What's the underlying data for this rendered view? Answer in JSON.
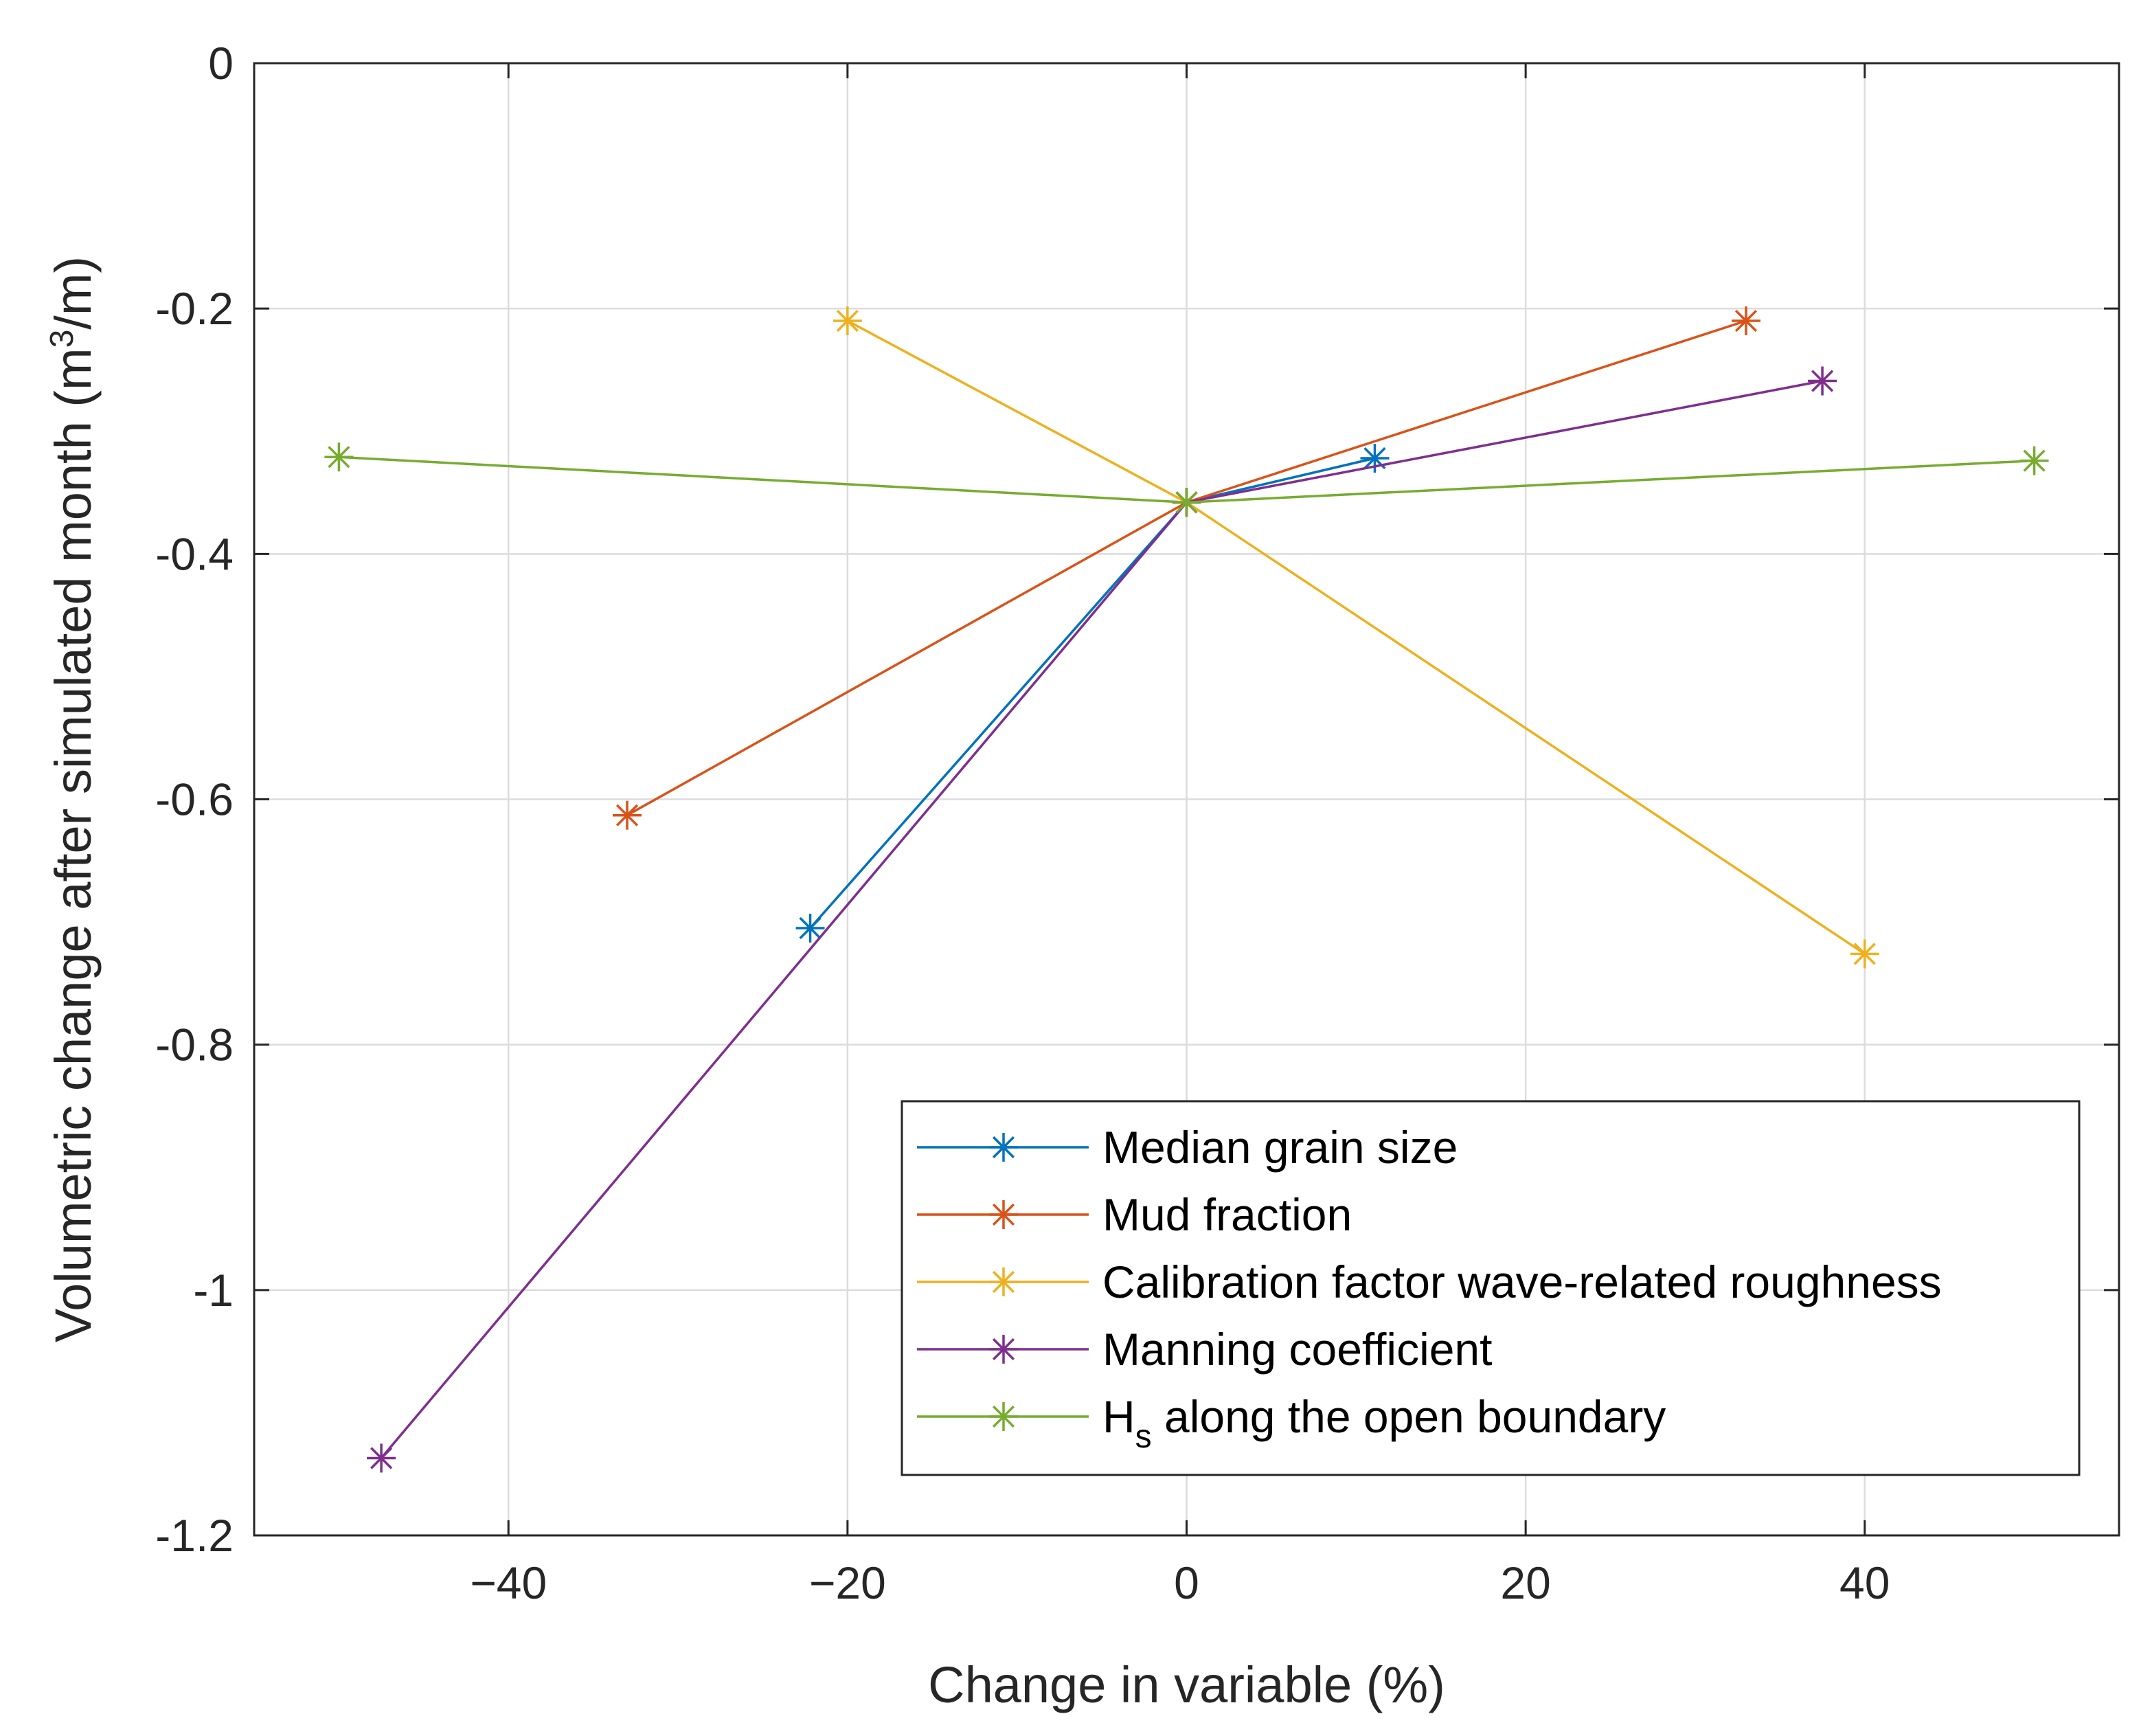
{
  "chart_data": {
    "type": "line",
    "title": "",
    "xlabel": "Change in variable (%)",
    "ylabel": {
      "prefix": "Volumetric change after simulated month (m",
      "superscript": "3",
      "suffix": "/m)"
    },
    "xlim": [
      -55,
      55
    ],
    "ylim": [
      -1.2,
      0
    ],
    "xticks": [
      -40,
      -20,
      0,
      20,
      40
    ],
    "xtick_labels": [
      "−40",
      "−20",
      "0",
      "20",
      "40"
    ],
    "yticks": [
      0,
      -0.2,
      -0.4,
      -0.6,
      -0.8,
      -1,
      -1.2
    ],
    "ytick_labels": [
      "0",
      "-0.2",
      "-0.4",
      "-0.6",
      "-0.8",
      "-1",
      "-1.2"
    ],
    "grid": true,
    "legend_position": "bottom-right",
    "marker": "asterisk",
    "series": [
      {
        "name": "Median grain size",
        "color": "#0072BD",
        "x": [
          -22.2,
          0,
          11.1
        ],
        "y": [
          -0.705,
          -0.358,
          -0.322
        ]
      },
      {
        "name": "Mud fraction",
        "color": "#D95319",
        "x": [
          -33,
          0,
          33
        ],
        "y": [
          -0.613,
          -0.358,
          -0.21
        ]
      },
      {
        "name": "Calibration factor wave-related roughness",
        "color": "#EDB120",
        "x": [
          -20,
          0,
          40
        ],
        "y": [
          -0.21,
          -0.358,
          -0.726
        ]
      },
      {
        "name": "Manning coefficient",
        "color": "#7E2F8E",
        "x": [
          -47.5,
          0,
          37.5
        ],
        "y": [
          -1.137,
          -0.358,
          -0.259
        ]
      },
      {
        "name": "H",
        "name_subscript": "s",
        "name_suffix": " along the open boundary",
        "color": "#77AC30",
        "x": [
          -50,
          0,
          50
        ],
        "y": [
          -0.321,
          -0.358,
          -0.324
        ]
      }
    ]
  }
}
